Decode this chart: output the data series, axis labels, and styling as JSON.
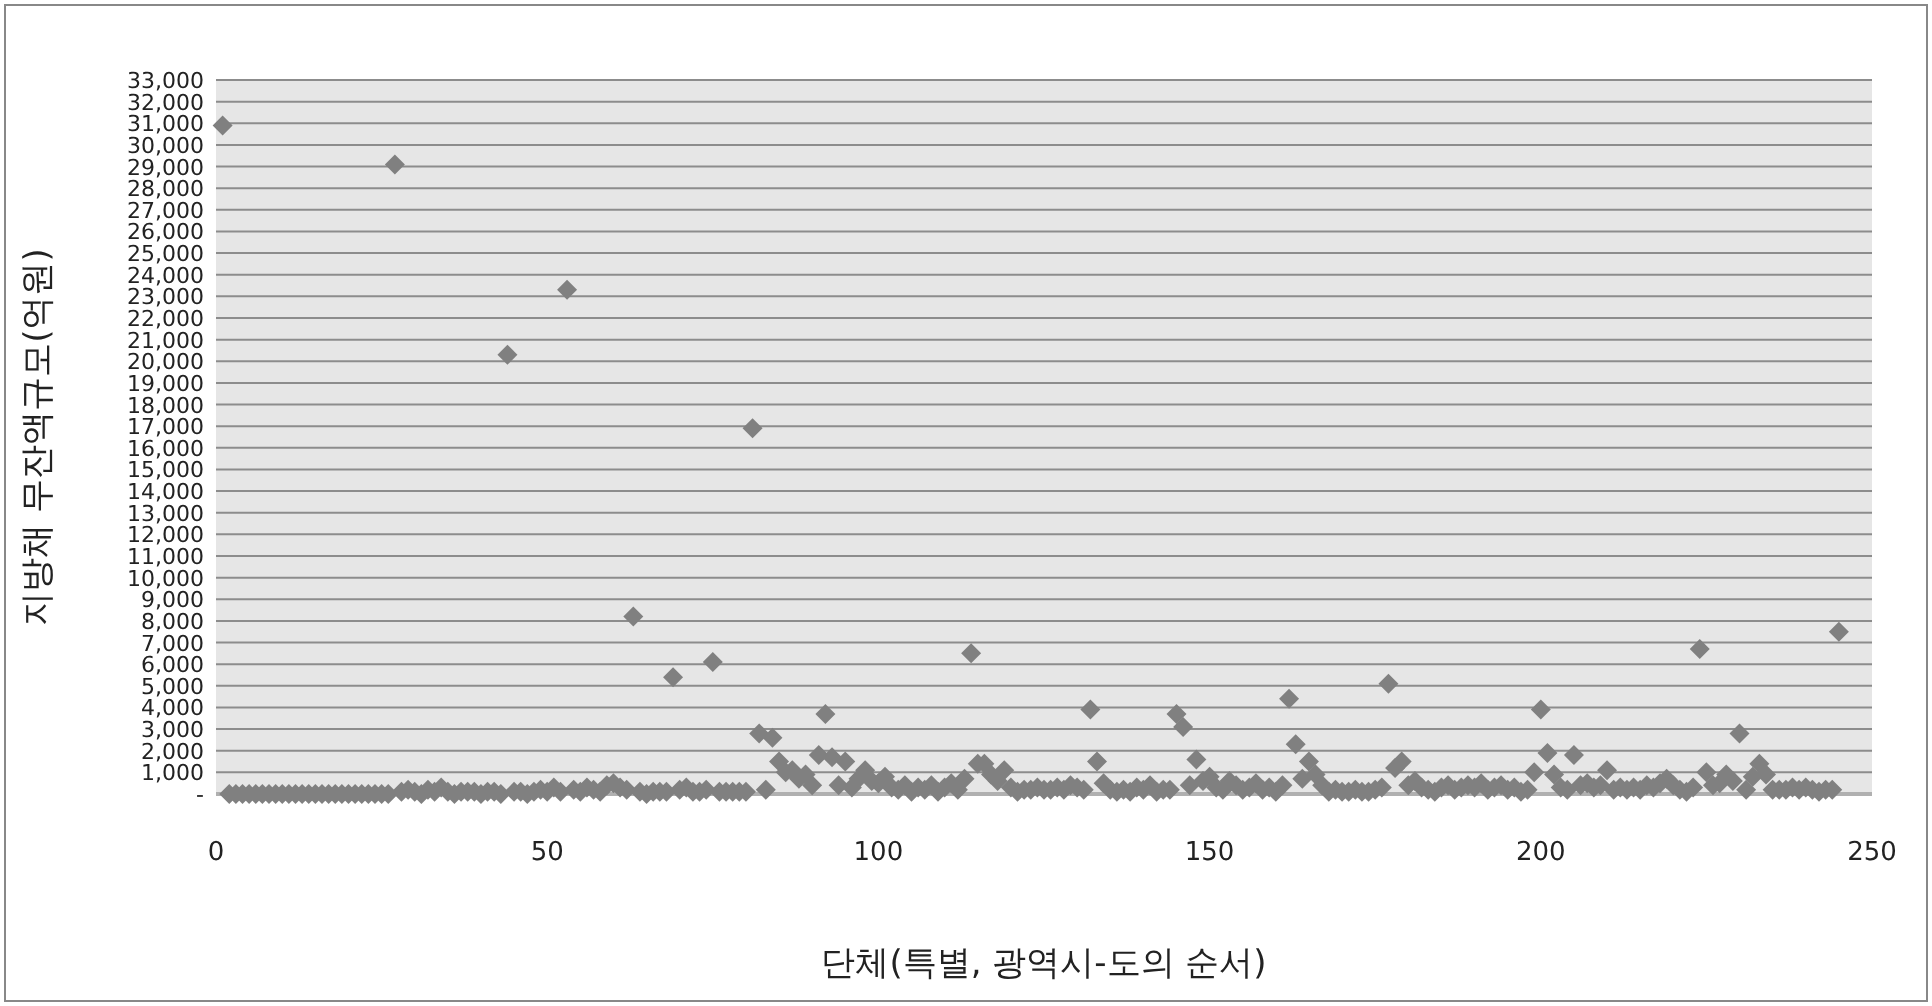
{
  "chart_data": {
    "type": "scatter",
    "xlabel": "단체(특별, 광역시-도의 순서)",
    "ylabel": "지방채 무잔액규모(억원)",
    "marker": "diamond",
    "grid": "y",
    "series": [
      {
        "color": "#808080",
        "x": [
          1,
          2,
          3,
          4,
          5,
          6,
          7,
          8,
          9,
          10,
          11,
          12,
          13,
          14,
          15,
          16,
          17,
          18,
          19,
          20,
          21,
          22,
          23,
          24,
          25,
          26,
          27,
          28,
          29,
          30,
          31,
          32,
          33,
          34,
          35,
          36,
          37,
          38,
          39,
          40,
          41,
          42,
          43,
          44,
          45,
          46,
          47,
          48,
          49,
          50,
          51,
          52,
          53,
          54,
          55,
          56,
          57,
          58,
          59,
          60,
          61,
          62,
          63,
          64,
          65,
          66,
          67,
          68,
          69,
          70,
          71,
          72,
          73,
          74,
          75,
          76,
          77,
          78,
          79,
          80,
          81,
          82,
          83,
          84,
          85,
          86,
          87,
          88,
          89,
          90,
          91,
          92,
          93,
          94,
          95,
          96,
          97,
          98,
          99,
          100,
          101,
          102,
          103,
          104,
          105,
          106,
          107,
          108,
          109,
          110,
          111,
          112,
          113,
          114,
          115,
          116,
          117,
          118,
          119,
          120,
          121,
          122,
          123,
          124,
          125,
          126,
          127,
          128,
          129,
          130,
          131,
          132,
          133,
          134,
          135,
          136,
          137,
          138,
          139,
          140,
          141,
          142,
          143,
          144,
          145,
          146,
          147,
          148,
          149,
          150,
          151,
          152,
          153,
          154,
          155,
          156,
          157,
          158,
          159,
          160,
          161,
          162,
          163,
          164,
          165,
          166,
          167,
          168,
          169,
          170,
          171,
          172,
          173,
          174,
          175,
          176,
          177,
          178,
          179,
          180,
          181,
          182,
          183,
          184,
          185,
          186,
          187,
          188,
          189,
          190,
          191,
          192,
          193,
          194,
          195,
          196,
          197,
          198,
          199,
          200,
          201,
          202,
          203,
          204,
          205,
          206,
          207,
          208,
          209,
          210,
          211,
          212,
          213,
          214,
          215,
          216,
          217,
          218,
          219,
          220,
          221,
          222,
          223,
          224,
          225,
          226,
          227,
          228,
          229,
          230,
          231,
          232,
          233,
          234,
          235,
          236,
          237,
          238,
          239,
          240,
          241,
          242,
          243,
          244,
          245
        ],
        "values": [
          30900,
          0,
          0,
          0,
          0,
          0,
          0,
          0,
          0,
          0,
          0,
          0,
          0,
          0,
          0,
          0,
          0,
          0,
          0,
          0,
          0,
          0,
          0,
          0,
          0,
          0,
          29100,
          100,
          200,
          100,
          0,
          200,
          100,
          300,
          100,
          0,
          100,
          100,
          100,
          0,
          100,
          100,
          0,
          20300,
          100,
          100,
          0,
          100,
          200,
          100,
          300,
          100,
          23300,
          200,
          100,
          300,
          200,
          100,
          400,
          500,
          300,
          200,
          8200,
          100,
          0,
          100,
          100,
          100,
          5400,
          200,
          300,
          100,
          100,
          200,
          6100,
          100,
          100,
          100,
          100,
          100,
          16900,
          2800,
          200,
          2600,
          1500,
          1000,
          1100,
          700,
          900,
          400,
          1800,
          3700,
          1700,
          400,
          1500,
          300,
          700,
          1100,
          600,
          500,
          800,
          300,
          200,
          400,
          100,
          300,
          200,
          400,
          100,
          300,
          500,
          200,
          700,
          6500,
          1400,
          1400,
          900,
          600,
          1100,
          300,
          100,
          200,
          200,
          300,
          200,
          200,
          300,
          200,
          400,
          300,
          200,
          3900,
          1500,
          500,
          200,
          100,
          200,
          100,
          300,
          200,
          400,
          100,
          200,
          200,
          3700,
          3100,
          400,
          1600,
          600,
          800,
          300,
          200,
          600,
          400,
          200,
          300,
          500,
          200,
          300,
          100,
          400,
          4400,
          2300,
          700,
          1500,
          900,
          400,
          100,
          200,
          100,
          100,
          200,
          100,
          100,
          200,
          300,
          5100,
          1200,
          1500,
          400,
          600,
          300,
          200,
          100,
          300,
          400,
          200,
          300,
          400,
          300,
          500,
          200,
          300,
          400,
          200,
          300,
          100,
          200,
          1000,
          3900,
          1900,
          900,
          300,
          200,
          1800,
          400,
          500,
          300,
          400,
          1100,
          200,
          300,
          200,
          300,
          200,
          400,
          300,
          500,
          700,
          400,
          200,
          100,
          300,
          6700,
          1000,
          400,
          500,
          900,
          600,
          2800,
          200,
          800,
          1400,
          900,
          200,
          200,
          200,
          300,
          200,
          300,
          200,
          100,
          200,
          200,
          7500
        ]
      }
    ],
    "xlim": [
      0,
      250
    ],
    "ylim": [
      0,
      33000
    ],
    "xticks": [
      0,
      50,
      100,
      150,
      200,
      250
    ],
    "yticks": [
      {
        "value": 0,
        "label": "-"
      },
      {
        "value": 1000,
        "label": "1,000"
      },
      {
        "value": 2000,
        "label": "2,000"
      },
      {
        "value": 3000,
        "label": "3,000"
      },
      {
        "value": 4000,
        "label": "4,000"
      },
      {
        "value": 5000,
        "label": "5,000"
      },
      {
        "value": 6000,
        "label": "6,000"
      },
      {
        "value": 7000,
        "label": "7,000"
      },
      {
        "value": 8000,
        "label": "8,000"
      },
      {
        "value": 9000,
        "label": "9,000"
      },
      {
        "value": 10000,
        "label": "10,000"
      },
      {
        "value": 11000,
        "label": "11,000"
      },
      {
        "value": 12000,
        "label": "12,000"
      },
      {
        "value": 13000,
        "label": "13,000"
      },
      {
        "value": 14000,
        "label": "14,000"
      },
      {
        "value": 15000,
        "label": "15,000"
      },
      {
        "value": 16000,
        "label": "16,000"
      },
      {
        "value": 17000,
        "label": "17,000"
      },
      {
        "value": 18000,
        "label": "18,000"
      },
      {
        "value": 19000,
        "label": "19,000"
      },
      {
        "value": 20000,
        "label": "20,000"
      },
      {
        "value": 21000,
        "label": "21,000"
      },
      {
        "value": 22000,
        "label": "22,000"
      },
      {
        "value": 23000,
        "label": "23,000"
      },
      {
        "value": 24000,
        "label": "24,000"
      },
      {
        "value": 25000,
        "label": "25,000"
      },
      {
        "value": 26000,
        "label": "26,000"
      },
      {
        "value": 27000,
        "label": "27,000"
      },
      {
        "value": 28000,
        "label": "28,000"
      },
      {
        "value": 29000,
        "label": "29,000"
      },
      {
        "value": 30000,
        "label": "30,000"
      },
      {
        "value": 31000,
        "label": "31,000"
      },
      {
        "value": 32000,
        "label": "32,000"
      },
      {
        "value": 33000,
        "label": "33,000"
      }
    ]
  }
}
